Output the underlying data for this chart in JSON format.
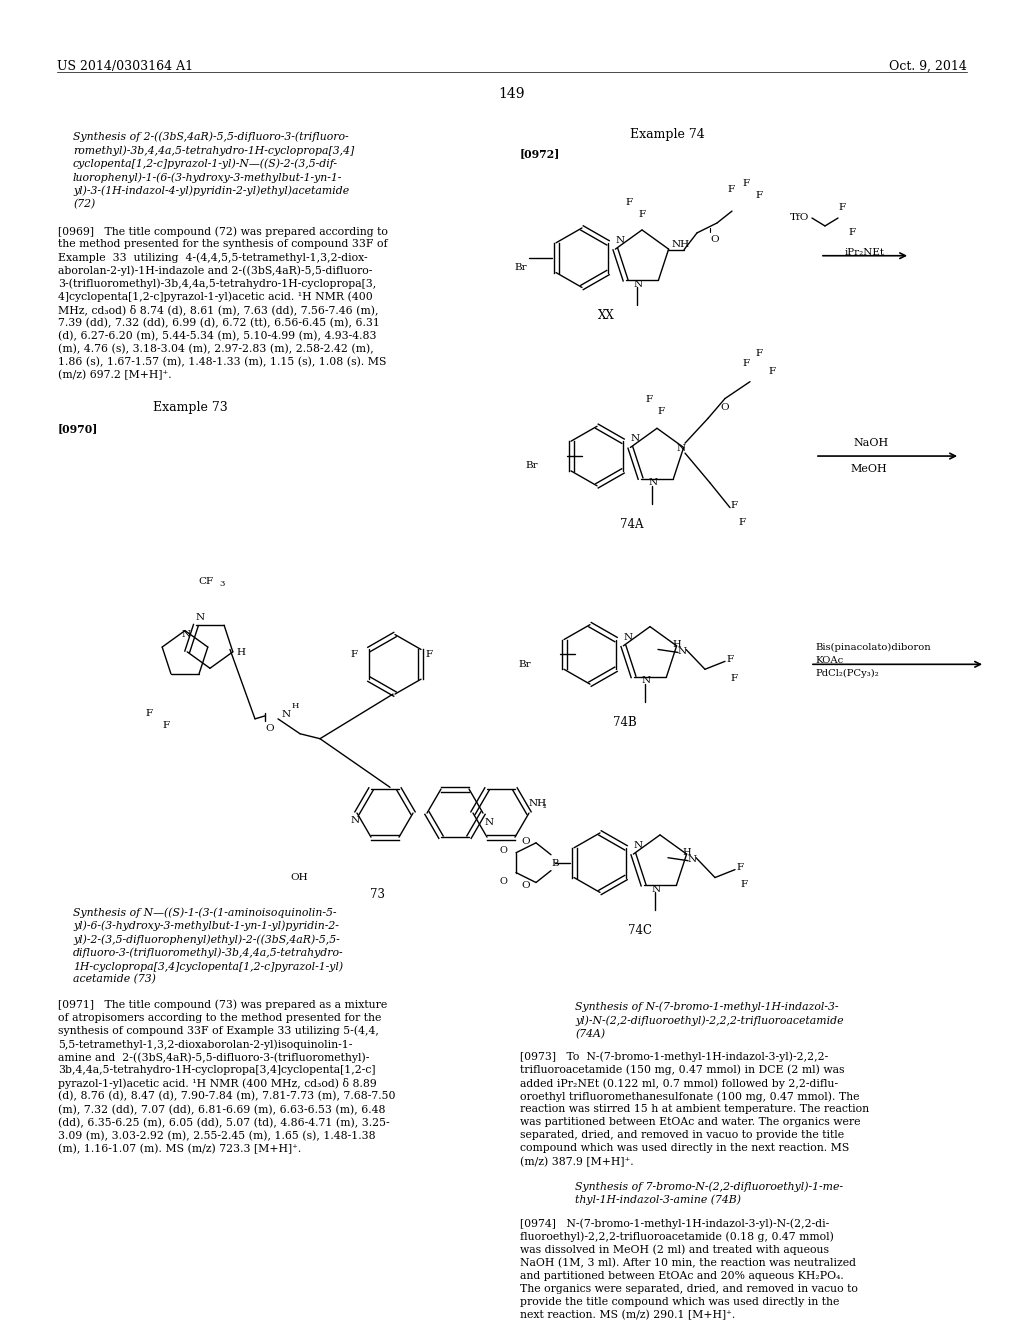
{
  "background_color": "#ffffff",
  "header_left": "US 2014/0303164 A1",
  "header_right": "Oct. 9, 2014",
  "page_number": "149",
  "synthesis_title_72_lines": [
    "Synthesis of 2-((3bS,4aR)-5,5-difluoro-3-(trifluoro-",
    "romethyl)-3b,4,4a,5-tetrahydro-1H-cyclopropa[3,4]",
    "cyclopenta[1,2-c]pyrazol-1-yl)-N—((S)-2-(3,5-dif-",
    "luorophenyl)-1-(6-(3-hydroxy-3-methylbut-1-yn-1-",
    "yl)-3-(1H-indazol-4-yl)pyridin-2-yl)ethyl)acetamide",
    "(72)"
  ],
  "para_0969_lines": [
    "[0969]   The title compound (72) was prepared according to",
    "the method presented for the synthesis of compound 33F of",
    "Example  33  utilizing  4-(4,4,5,5-tetramethyl-1,3,2-diox-",
    "aborolan-2-yl)-1H-indazole and 2-((3bS,4aR)-5,5-difluoro-",
    "3-(trifluoromethyl)-3b,4,4a,5-tetrahydro-1H-cyclopropa[3,",
    "4]cyclopenta[1,2-c]pyrazol-1-yl)acetic acid. ¹H NMR (400",
    "MHz, cd₃od) δ 8.74 (d), 8.61 (m), 7.63 (dd), 7.56-7.46 (m),",
    "7.39 (dd), 7.32 (dd), 6.99 (d), 6.72 (tt), 6.56-6.45 (m), 6.31",
    "(d), 6.27-6.20 (m), 5.44-5.34 (m), 5.10-4.99 (m), 4.93-4.83",
    "(m), 4.76 (s), 3.18-3.04 (m), 2.97-2.83 (m), 2.58-2.42 (m),",
    "1.86 (s), 1.67-1.57 (m), 1.48-1.33 (m), 1.15 (s), 1.08 (s). MS",
    "(m/z) 697.2 [M+H]⁺."
  ],
  "example73_title": "Example 73",
  "para_0970_label": "[0970]",
  "compound73_label": "73",
  "synthesis_title_73_lines": [
    "Synthesis of N—((S)-1-(3-(1-aminoisoquinolin-5-",
    "yl)-6-(3-hydroxy-3-methylbut-1-yn-1-yl)pyridin-2-",
    "yl)-2-(3,5-difluorophenyl)ethyl)-2-((3bS,4aR)-5,5-",
    "difluoro-3-(trifluoromethyl)-3b,4,4a,5-tetrahydro-",
    "1H-cyclopropa[3,4]cyclopenta[1,2-c]pyrazol-1-yl)",
    "acetamide (73)"
  ],
  "para_0971_lines": [
    "[0971]   The title compound (73) was prepared as a mixture",
    "of atropisomers according to the method presented for the",
    "synthesis of compound 33F of Example 33 utilizing 5-(4,4,",
    "5,5-tetramethyl-1,3,2-dioxaborolan-2-yl)isoquinolin-1-",
    "amine and  2-((3bS,4aR)-5,5-difluoro-3-(trifluoromethyl)-",
    "3b,4,4a,5-tetrahydro-1H-cyclopropa[3,4]cyclopenta[1,2-c]",
    "pyrazol-1-yl)acetic acid. ¹H NMR (400 MHz, cd₃od) δ 8.89",
    "(d), 8.76 (d), 8.47 (d), 7.90-7.84 (m), 7.81-7.73 (m), 7.68-7.50",
    "(m), 7.32 (dd), 7.07 (dd), 6.81-6.69 (m), 6.63-6.53 (m), 6.48",
    "(dd), 6.35-6.25 (m), 6.05 (dd), 5.07 (td), 4.86-4.71 (m), 3.25-",
    "3.09 (m), 3.03-2.92 (m), 2.55-2.45 (m), 1.65 (s), 1.48-1.38",
    "(m), 1.16-1.07 (m). MS (m/z) 723.3 [M+H]⁺."
  ],
  "example74_title": "Example 74",
  "para_0972_label": "[0972]",
  "compound_xx_label": "XX",
  "compound_74a_label": "74A",
  "compound_74b_label": "74B",
  "compound_74c_label": "74C",
  "reagent_tfo_line1": "TfO",
  "reagent_ipr2net": "iPr₂NEt",
  "reagent_naoh": "NaOH",
  "reagent_meoh": "MeOH",
  "reagent_bispin_lines": [
    "Bis(pinacolato)diboron",
    "KOAc",
    "PdCl₂(PCy₃)₂"
  ],
  "synthesis_title_74a_lines": [
    "Synthesis of N-(7-bromo-1-methyl-1H-indazol-3-",
    "yl)-N-(2,2-difluoroethyl)-2,2,2-trifluoroacetamide",
    "(74A)"
  ],
  "para_0973_lines": [
    "[0973]   To  N-(7-bromo-1-methyl-1H-indazol-3-yl)-2,2,2-",
    "trifluoroacetamide (150 mg, 0.47 mmol) in DCE (2 ml) was",
    "added iPr₂NEt (0.122 ml, 0.7 mmol) followed by 2,2-diflu-",
    "oroethyl trifluoromethanesulfonate (100 mg, 0.47 mmol). The",
    "reaction was stirred 15 h at ambient temperature. The reaction",
    "was partitioned between EtOAc and water. The organics were",
    "separated, dried, and removed in vacuo to provide the title",
    "compound which was used directly in the next reaction. MS",
    "(m/z) 387.9 [M+H]⁺."
  ],
  "synthesis_title_74b_lines": [
    "Synthesis of 7-bromo-N-(2,2-difluoroethyl)-1-me-",
    "thyl-1H-indazol-3-amine (74B)"
  ],
  "para_0974_lines": [
    "[0974]   N-(7-bromo-1-methyl-1H-indazol-3-yl)-N-(2,2-di-",
    "fluoroethyl)-2,2,2-trifluoroacetamide (0.18 g, 0.47 mmol)",
    "was dissolved in MeOH (2 ml) and treated with aqueous",
    "NaOH (1M, 3 ml). After 10 min, the reaction was neutralized",
    "and partitioned between EtOAc and 20% aqueous KH₂PO₄.",
    "The organics were separated, dried, and removed in vacuo to",
    "provide the title compound which was used directly in the",
    "next reaction. MS (m/z) 290.1 [M+H]⁺."
  ]
}
